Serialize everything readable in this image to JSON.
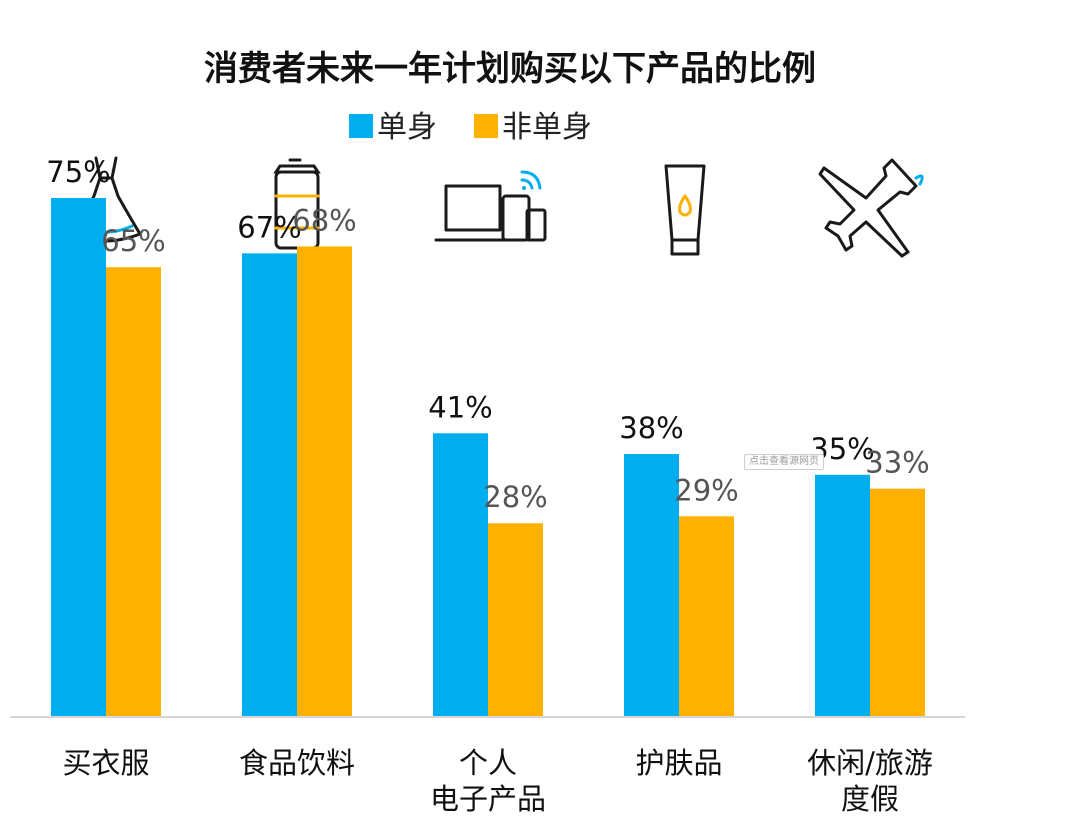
{
  "chart_data": {
    "type": "bar",
    "title": "消费者未来一年计划购买以下产品的比例",
    "legend_position": "top-center",
    "ylim": [
      0,
      100
    ],
    "grid": false,
    "categories": [
      [
        "买衣服"
      ],
      [
        "食品饮料"
      ],
      [
        "个人",
        "电子产品"
      ],
      [
        "护肤品"
      ],
      [
        "休闲/旅游",
        "度假"
      ]
    ],
    "category_icons": [
      "dress-icon",
      "drink-can-icon",
      "electronic-devices-icon",
      "skincare-tube-icon",
      "airplane-icon"
    ],
    "series": [
      {
        "name": "单身",
        "color": "#00AEEF",
        "values": [
          75,
          67,
          41,
          38,
          35
        ],
        "labels": [
          "75%",
          "67%",
          "41%",
          "38%",
          "35%"
        ]
      },
      {
        "name": "非单身",
        "color": "#FFB000",
        "values": [
          65,
          68,
          28,
          29,
          33
        ],
        "labels": [
          "65%",
          "68%",
          "28%",
          "29%",
          "33%"
        ]
      }
    ]
  },
  "watermark": {
    "text": "点击查看源网页"
  }
}
